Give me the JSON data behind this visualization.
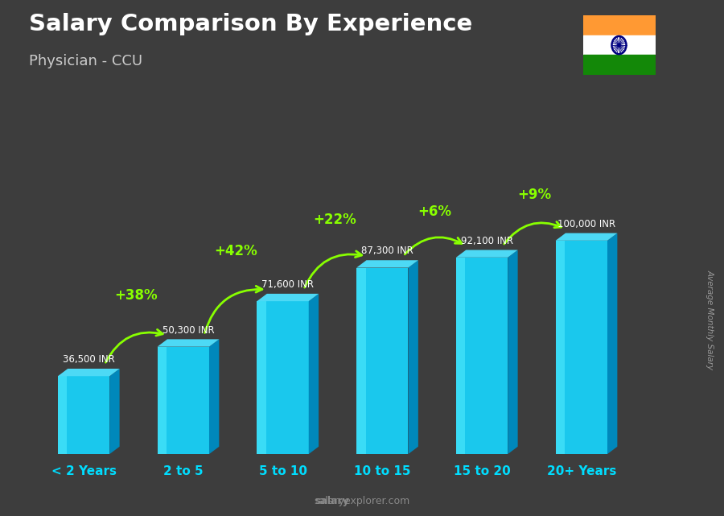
{
  "title": "Salary Comparison By Experience",
  "subtitle": "Physician - CCU",
  "ylabel": "Average Monthly Salary",
  "xlabel_labels": [
    "< 2 Years",
    "2 to 5",
    "5 to 10",
    "10 to 15",
    "15 to 20",
    "20+ Years"
  ],
  "values": [
    36500,
    50300,
    71600,
    87300,
    92100,
    100000
  ],
  "value_labels": [
    "36,500 INR",
    "50,300 INR",
    "71,600 INR",
    "87,300 INR",
    "92,100 INR",
    "100,000 INR"
  ],
  "pct_labels": [
    "+38%",
    "+42%",
    "+22%",
    "+6%",
    "+9%"
  ],
  "color_front": "#1ac8ed",
  "color_top": "#4dd9f5",
  "color_side": "#0088bb",
  "color_edge": "#55eeff",
  "bg_color": "#3d3d3d",
  "title_color": "#ffffff",
  "subtitle_color": "#cccccc",
  "tick_color": "#00ddff",
  "pct_color": "#88ff00",
  "label_color": "#ffffff",
  "watermark_color": "#888888",
  "ylabel_color": "#999999",
  "flag_border": "#555555"
}
